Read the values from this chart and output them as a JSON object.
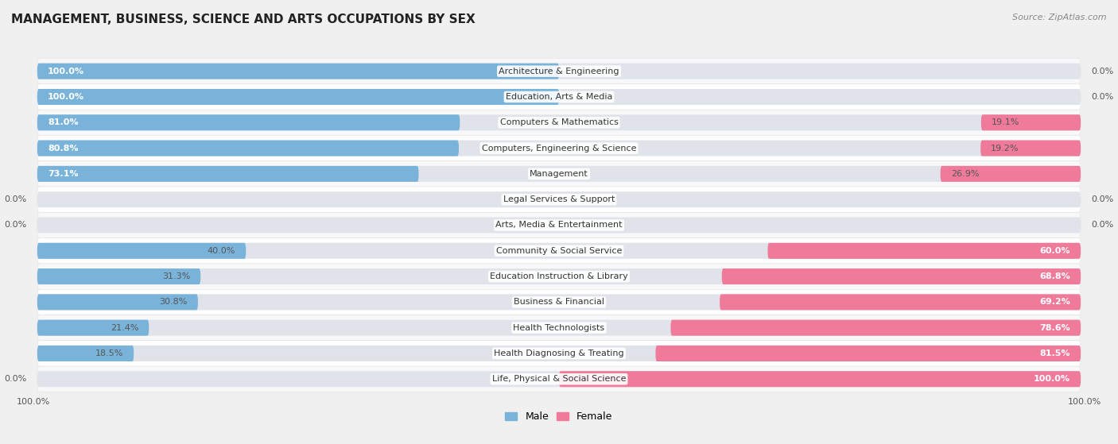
{
  "title": "MANAGEMENT, BUSINESS, SCIENCE AND ARTS OCCUPATIONS BY SEX",
  "source": "Source: ZipAtlas.com",
  "categories": [
    "Architecture & Engineering",
    "Education, Arts & Media",
    "Computers & Mathematics",
    "Computers, Engineering & Science",
    "Management",
    "Legal Services & Support",
    "Arts, Media & Entertainment",
    "Community & Social Service",
    "Education Instruction & Library",
    "Business & Financial",
    "Health Technologists",
    "Health Diagnosing & Treating",
    "Life, Physical & Social Science"
  ],
  "male": [
    100.0,
    100.0,
    81.0,
    80.8,
    73.1,
    0.0,
    0.0,
    40.0,
    31.3,
    30.8,
    21.4,
    18.5,
    0.0
  ],
  "female": [
    0.0,
    0.0,
    19.1,
    19.2,
    26.9,
    0.0,
    0.0,
    60.0,
    68.8,
    69.2,
    78.6,
    81.5,
    100.0
  ],
  "male_color": "#7ab3d9",
  "female_color": "#f07a9a",
  "male_color_light": "#aecfe8",
  "female_color_light": "#f5b0c0",
  "bg_color": "#f0f0f0",
  "row_bg_even": "#f8f8fa",
  "row_bg_odd": "#ffffff",
  "title_fontsize": 11,
  "source_fontsize": 8,
  "label_fontsize": 8,
  "bar_label_fontsize": 8,
  "legend_fontsize": 9
}
